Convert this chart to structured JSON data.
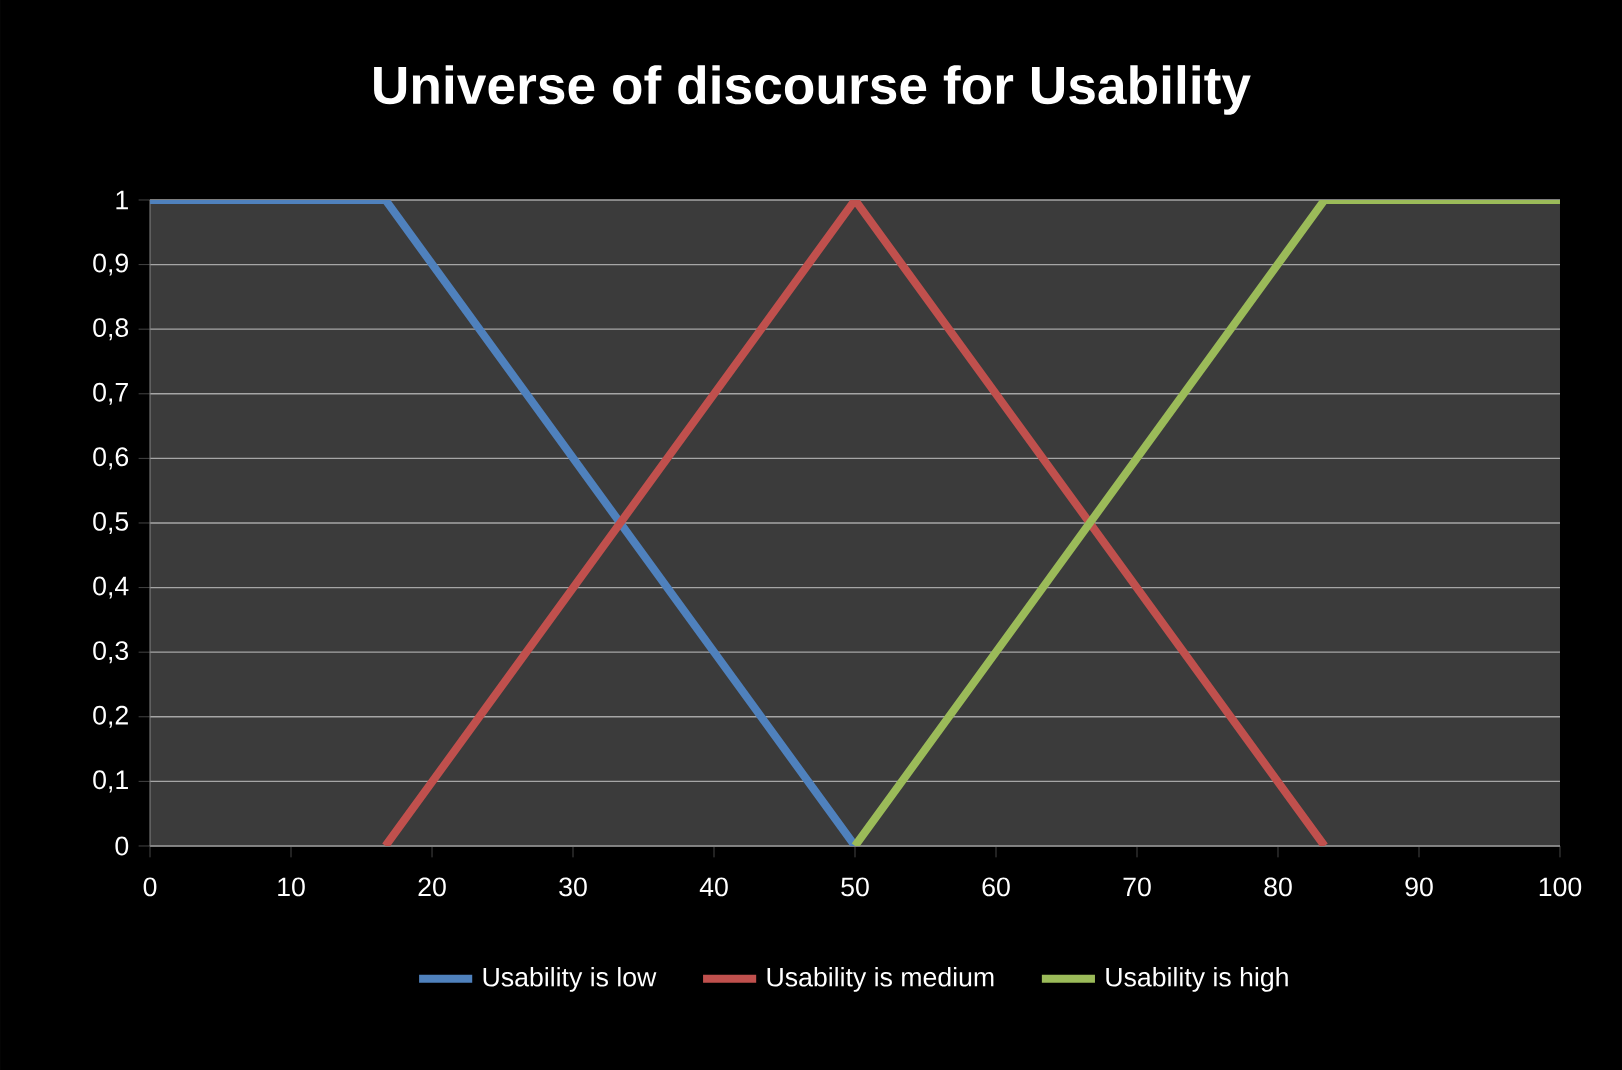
{
  "chart_data": {
    "type": "line",
    "title": "Universe of discourse for Usability",
    "series": [
      {
        "name": "Usability is low",
        "color": "#4f81bd",
        "x": [
          0,
          16.7,
          50
        ],
        "values": [
          1,
          1,
          0
        ]
      },
      {
        "name": "Usability is medium",
        "color": "#c0504d",
        "x": [
          16.7,
          50,
          83.3
        ],
        "values": [
          0,
          1,
          0
        ]
      },
      {
        "name": "Usability is high",
        "color": "#9bbb59",
        "x": [
          50,
          83.3,
          100
        ],
        "values": [
          0,
          1,
          1
        ]
      }
    ],
    "xlim": [
      0,
      100
    ],
    "xticks": [
      0,
      10,
      20,
      30,
      40,
      50,
      60,
      70,
      80,
      90,
      100
    ],
    "ylim": [
      0,
      1
    ],
    "yticks": [
      0,
      {
        "value": 0.1,
        "label": "0,1"
      },
      {
        "value": 0.2,
        "label": "0,2"
      },
      {
        "value": 0.3,
        "label": "0,3"
      },
      {
        "value": 0.4,
        "label": "0,4"
      },
      {
        "value": 0.5,
        "label": "0,5"
      },
      {
        "value": 0.6,
        "label": "0,6"
      },
      {
        "value": 0.7,
        "label": "0,7"
      },
      {
        "value": 0.8,
        "label": "0,8"
      },
      {
        "value": 0.9,
        "label": "0,9"
      },
      1
    ],
    "grid": "y",
    "legend": "bottom",
    "marker": "none",
    "line_style": "solid"
  }
}
